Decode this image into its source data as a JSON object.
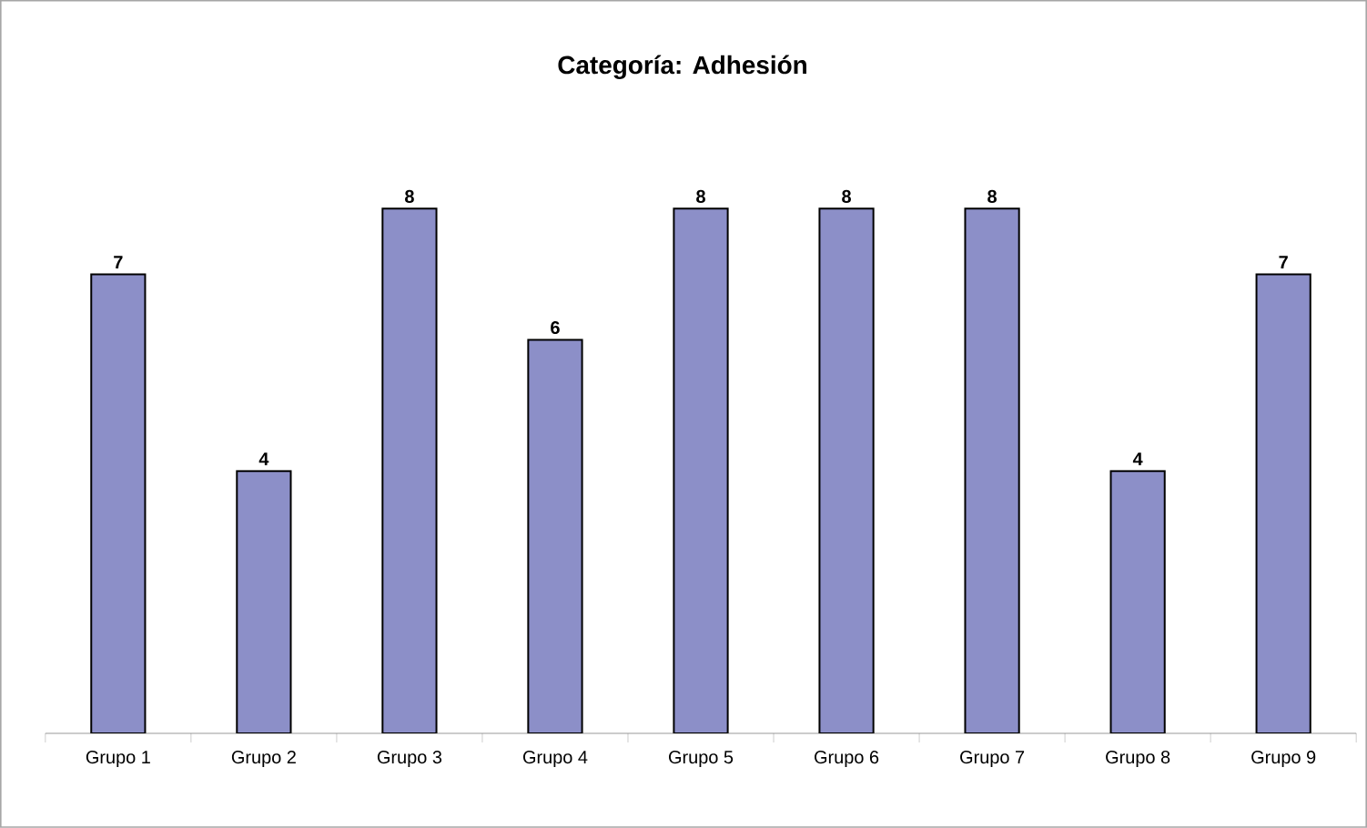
{
  "chart_data": {
    "type": "bar",
    "title": "Categoría: Adhesión",
    "categories": [
      "Grupo 1",
      "Grupo 2",
      "Grupo 3",
      "Grupo 4",
      "Grupo 5",
      "Grupo 6",
      "Grupo 7",
      "Grupo 8",
      "Grupo 9"
    ],
    "values": [
      7,
      4,
      8,
      6,
      8,
      8,
      8,
      4,
      7
    ],
    "color": "#8c8fc8",
    "data_labels": true,
    "tick_labels": "x"
  }
}
